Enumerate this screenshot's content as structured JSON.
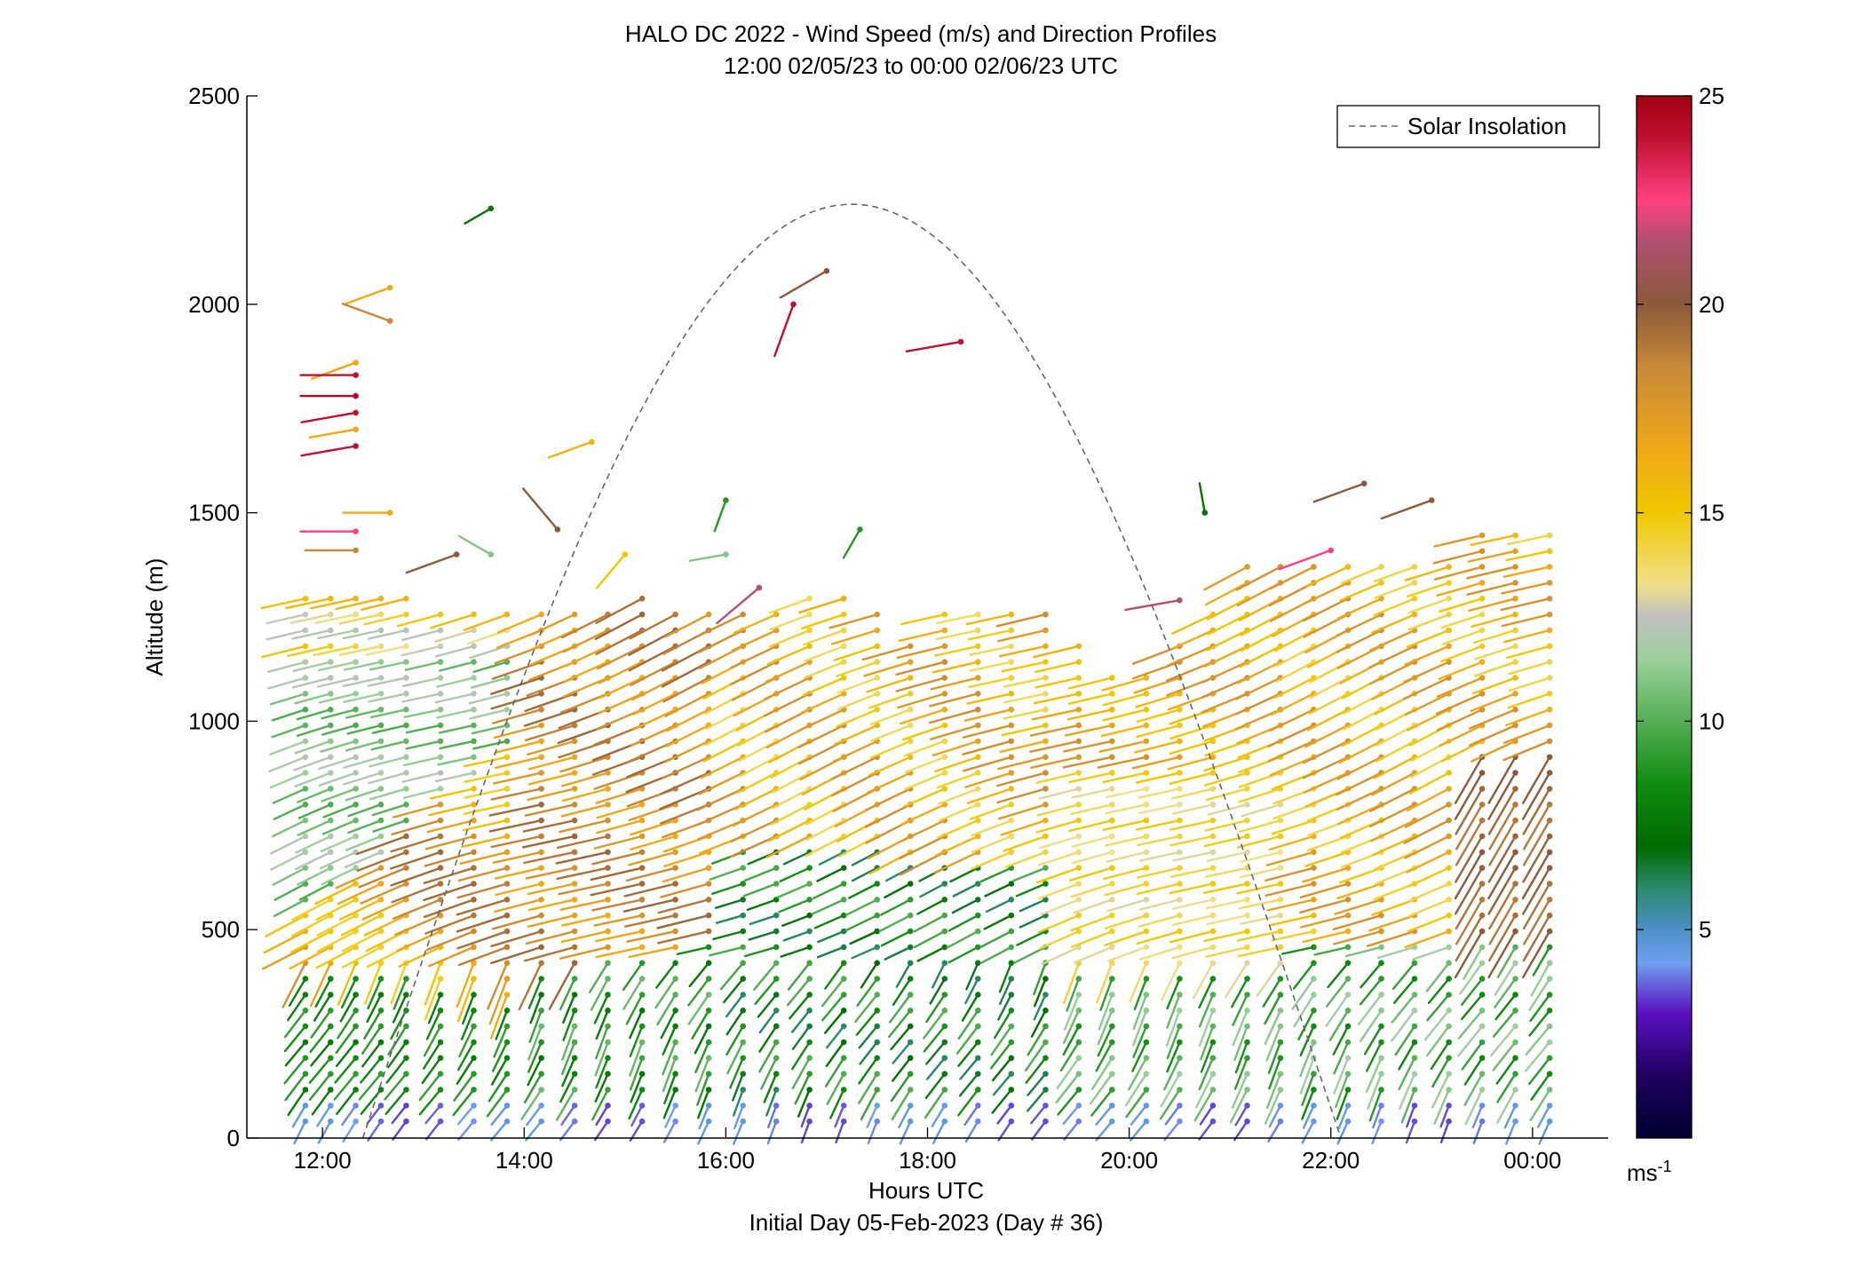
{
  "chart_data": {
    "type": "scatter",
    "title_line1": "HALO DC 2022 - Wind Speed (m/s) and Direction Profiles",
    "title_line2": "12:00 02/05/23 to 00:00 02/06/23  UTC",
    "xlabel": "Hours UTC",
    "xlabel_sub": "Initial Day 05-Feb-2023 (Day # 36)",
    "ylabel": "Altitude (m)",
    "xlim": [
      11.25,
      24.75
    ],
    "ylim": [
      0,
      2500
    ],
    "x_ticks": [
      {
        "value": 12,
        "label": "12:00"
      },
      {
        "value": 14,
        "label": "14:00"
      },
      {
        "value": 16,
        "label": "16:00"
      },
      {
        "value": 18,
        "label": "18:00"
      },
      {
        "value": 20,
        "label": "20:00"
      },
      {
        "value": 22,
        "label": "22:00"
      },
      {
        "value": 24,
        "label": "00:00"
      }
    ],
    "y_ticks": [
      0,
      500,
      1000,
      1500,
      2000,
      2500
    ],
    "legend": {
      "label": "Solar Insolation",
      "placement": "top-right"
    },
    "solar_insolation": {
      "start": 12.4,
      "peak_time": 17.3,
      "peak_altitude": 2240,
      "end": 22.1
    },
    "colorbar": {
      "range": [
        0,
        25
      ],
      "ticks": [
        5,
        10,
        15,
        20,
        25
      ],
      "unit_label": "ms",
      "unit_exponent": "-1",
      "colors": [
        {
          "v": 0,
          "c": "#000030"
        },
        {
          "v": 1.5,
          "c": "#200060"
        },
        {
          "v": 3,
          "c": "#5a10c0"
        },
        {
          "v": 4.2,
          "c": "#6f9ff0"
        },
        {
          "v": 5,
          "c": "#4d90c8"
        },
        {
          "v": 6,
          "c": "#2a8a6a"
        },
        {
          "v": 7,
          "c": "#006b00"
        },
        {
          "v": 8.5,
          "c": "#108c10"
        },
        {
          "v": 10,
          "c": "#55ae55"
        },
        {
          "v": 11.5,
          "c": "#9cd09c"
        },
        {
          "v": 12.5,
          "c": "#c0c0c0"
        },
        {
          "v": 13.3,
          "c": "#f0e088"
        },
        {
          "v": 15,
          "c": "#f0c800"
        },
        {
          "v": 16.5,
          "c": "#f0a818"
        },
        {
          "v": 18.5,
          "c": "#c88838"
        },
        {
          "v": 20,
          "c": "#8a5a3a"
        },
        {
          "v": 21.5,
          "c": "#b05070"
        },
        {
          "v": 22.5,
          "c": "#ff4080"
        },
        {
          "v": 24,
          "c": "#c01030"
        },
        {
          "v": 25,
          "c": "#a00010"
        }
      ]
    },
    "profile_times": [
      11.83,
      12.08,
      12.33,
      12.58,
      12.83,
      13.17,
      13.5,
      13.83,
      14.17,
      14.5,
      14.83,
      15.17,
      15.5,
      15.83,
      16.17,
      16.5,
      16.83,
      17.17,
      17.5,
      17.83,
      18.17,
      18.5,
      18.83,
      19.17,
      19.5,
      19.83,
      20.17,
      20.5,
      20.83,
      21.17,
      21.5,
      21.83,
      22.17,
      22.5,
      22.83,
      23.17,
      23.5,
      23.83,
      24.17
    ],
    "profile_tops": [
      1330,
      1330,
      1330,
      1330,
      1300,
      1290,
      1290,
      1290,
      1260,
      1260,
      1290,
      1300,
      1290,
      1290,
      1260,
      1260,
      1300,
      1300,
      1260,
      1200,
      1290,
      1290,
      1290,
      1290,
      1200,
      1120,
      1120,
      1190,
      1290,
      1370,
      1400,
      1400,
      1400,
      1400,
      1400,
      1400,
      1450,
      1450,
      1450
    ],
    "altitude_step": 38,
    "sparse_vectors": [
      {
        "t": 12.33,
        "alt": 1860,
        "speed": 16.5,
        "dir": 70
      },
      {
        "t": 12.33,
        "alt": 1830,
        "speed": 24,
        "dir": 90
      },
      {
        "t": 12.33,
        "alt": 1780,
        "speed": 24.5,
        "dir": 90
      },
      {
        "t": 12.33,
        "alt": 1740,
        "speed": 24,
        "dir": 80
      },
      {
        "t": 12.33,
        "alt": 1700,
        "speed": 16.5,
        "dir": 80
      },
      {
        "t": 12.33,
        "alt": 1660,
        "speed": 24,
        "dir": 80
      },
      {
        "t": 12.33,
        "alt": 1455,
        "speed": 22.5,
        "dir": 90
      },
      {
        "t": 12.33,
        "alt": 1410,
        "speed": 18.5,
        "dir": 90
      },
      {
        "t": 12.67,
        "alt": 2040,
        "speed": 16.5,
        "dir": 70
      },
      {
        "t": 12.67,
        "alt": 1960,
        "speed": 18.5,
        "dir": 110
      },
      {
        "t": 12.67,
        "alt": 1500,
        "speed": 16.5,
        "dir": 90
      },
      {
        "t": 13.33,
        "alt": 1400,
        "speed": 20,
        "dir": 70
      },
      {
        "t": 13.67,
        "alt": 2230,
        "speed": 7.5,
        "dir": 60
      },
      {
        "t": 13.67,
        "alt": 1400,
        "speed": 11,
        "dir": 120
      },
      {
        "t": 14.33,
        "alt": 1460,
        "speed": 20,
        "dir": 140
      },
      {
        "t": 14.67,
        "alt": 1670,
        "speed": 16,
        "dir": 70
      },
      {
        "t": 15.0,
        "alt": 1400,
        "speed": 15,
        "dir": 40
      },
      {
        "t": 16.0,
        "alt": 1530,
        "speed": 9,
        "dir": 20
      },
      {
        "t": 16.0,
        "alt": 1400,
        "speed": 11,
        "dir": 80
      },
      {
        "t": 16.33,
        "alt": 1320,
        "speed": 21.5,
        "dir": 50
      },
      {
        "t": 16.67,
        "alt": 2000,
        "speed": 24,
        "dir": 20
      },
      {
        "t": 17.0,
        "alt": 2080,
        "speed": 20,
        "dir": 60
      },
      {
        "t": 17.33,
        "alt": 1460,
        "speed": 9,
        "dir": 30
      },
      {
        "t": 18.33,
        "alt": 1910,
        "speed": 24,
        "dir": 80
      },
      {
        "t": 20.5,
        "alt": 1290,
        "speed": 21.5,
        "dir": 80
      },
      {
        "t": 20.75,
        "alt": 1500,
        "speed": 7.5,
        "dir": 170
      },
      {
        "t": 22.0,
        "alt": 1410,
        "speed": 22.5,
        "dir": 70
      },
      {
        "t": 22.33,
        "alt": 1570,
        "speed": 20,
        "dir": 70
      },
      {
        "t": 23.0,
        "alt": 1530,
        "speed": 20,
        "dir": 70
      }
    ]
  }
}
